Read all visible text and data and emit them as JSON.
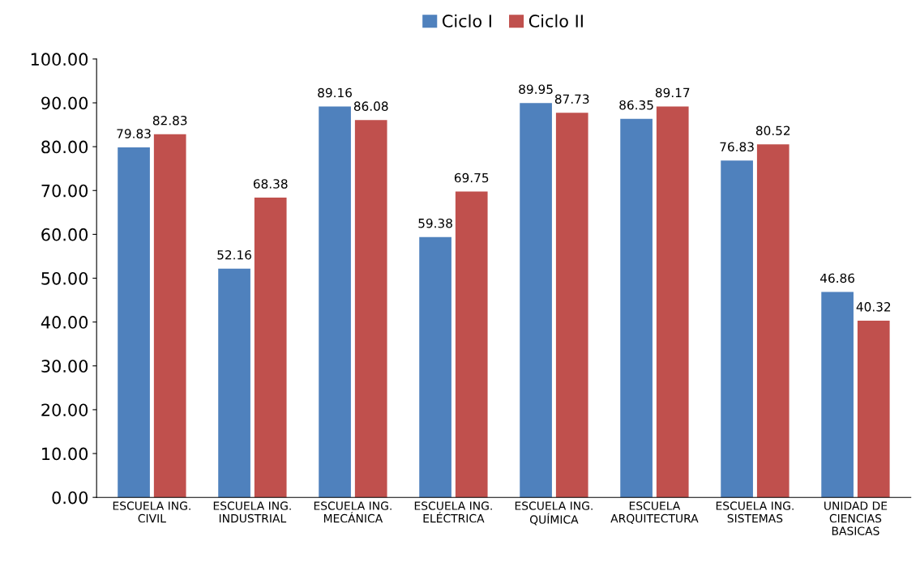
{
  "chart_data": {
    "type": "bar",
    "categories": [
      "ESCUELA ING. CIVIL",
      "ESCUELA ING. INDUSTRIAL",
      "ESCUELA ING. MECÁNICA",
      "ESCUELA ING. ELÉCTRICA",
      "ESCUELA ING. QUÍMICA",
      "ESCUELA ARQUITECTURA",
      "ESCUELA ING. SISTEMAS",
      "UNIDAD DE CIENCIAS BASICAS"
    ],
    "series": [
      {
        "name": "Ciclo I",
        "color": "#4f81bd",
        "values": [
          79.83,
          52.16,
          89.16,
          59.38,
          89.95,
          86.35,
          76.83,
          46.86
        ]
      },
      {
        "name": "Ciclo II",
        "color": "#c0504d",
        "values": [
          82.83,
          68.38,
          86.08,
          69.75,
          87.73,
          89.17,
          80.52,
          40.32
        ]
      }
    ],
    "ylim": [
      0,
      100
    ],
    "yticks": [
      {
        "value": 0,
        "label": "0.00"
      },
      {
        "value": 10,
        "label": "10.00"
      },
      {
        "value": 20,
        "label": "20.00"
      },
      {
        "value": 30,
        "label": "30.00"
      },
      {
        "value": 40,
        "label": "40.00"
      },
      {
        "value": 50,
        "label": "50.00"
      },
      {
        "value": 60,
        "label": "60.00"
      },
      {
        "value": 70,
        "label": "70.00"
      },
      {
        "value": 80,
        "label": "80.00"
      },
      {
        "value": 90,
        "label": "90.00"
      },
      {
        "value": 100,
        "label": "100.00"
      }
    ],
    "data_labels": true,
    "grid": false,
    "legend": "top"
  }
}
